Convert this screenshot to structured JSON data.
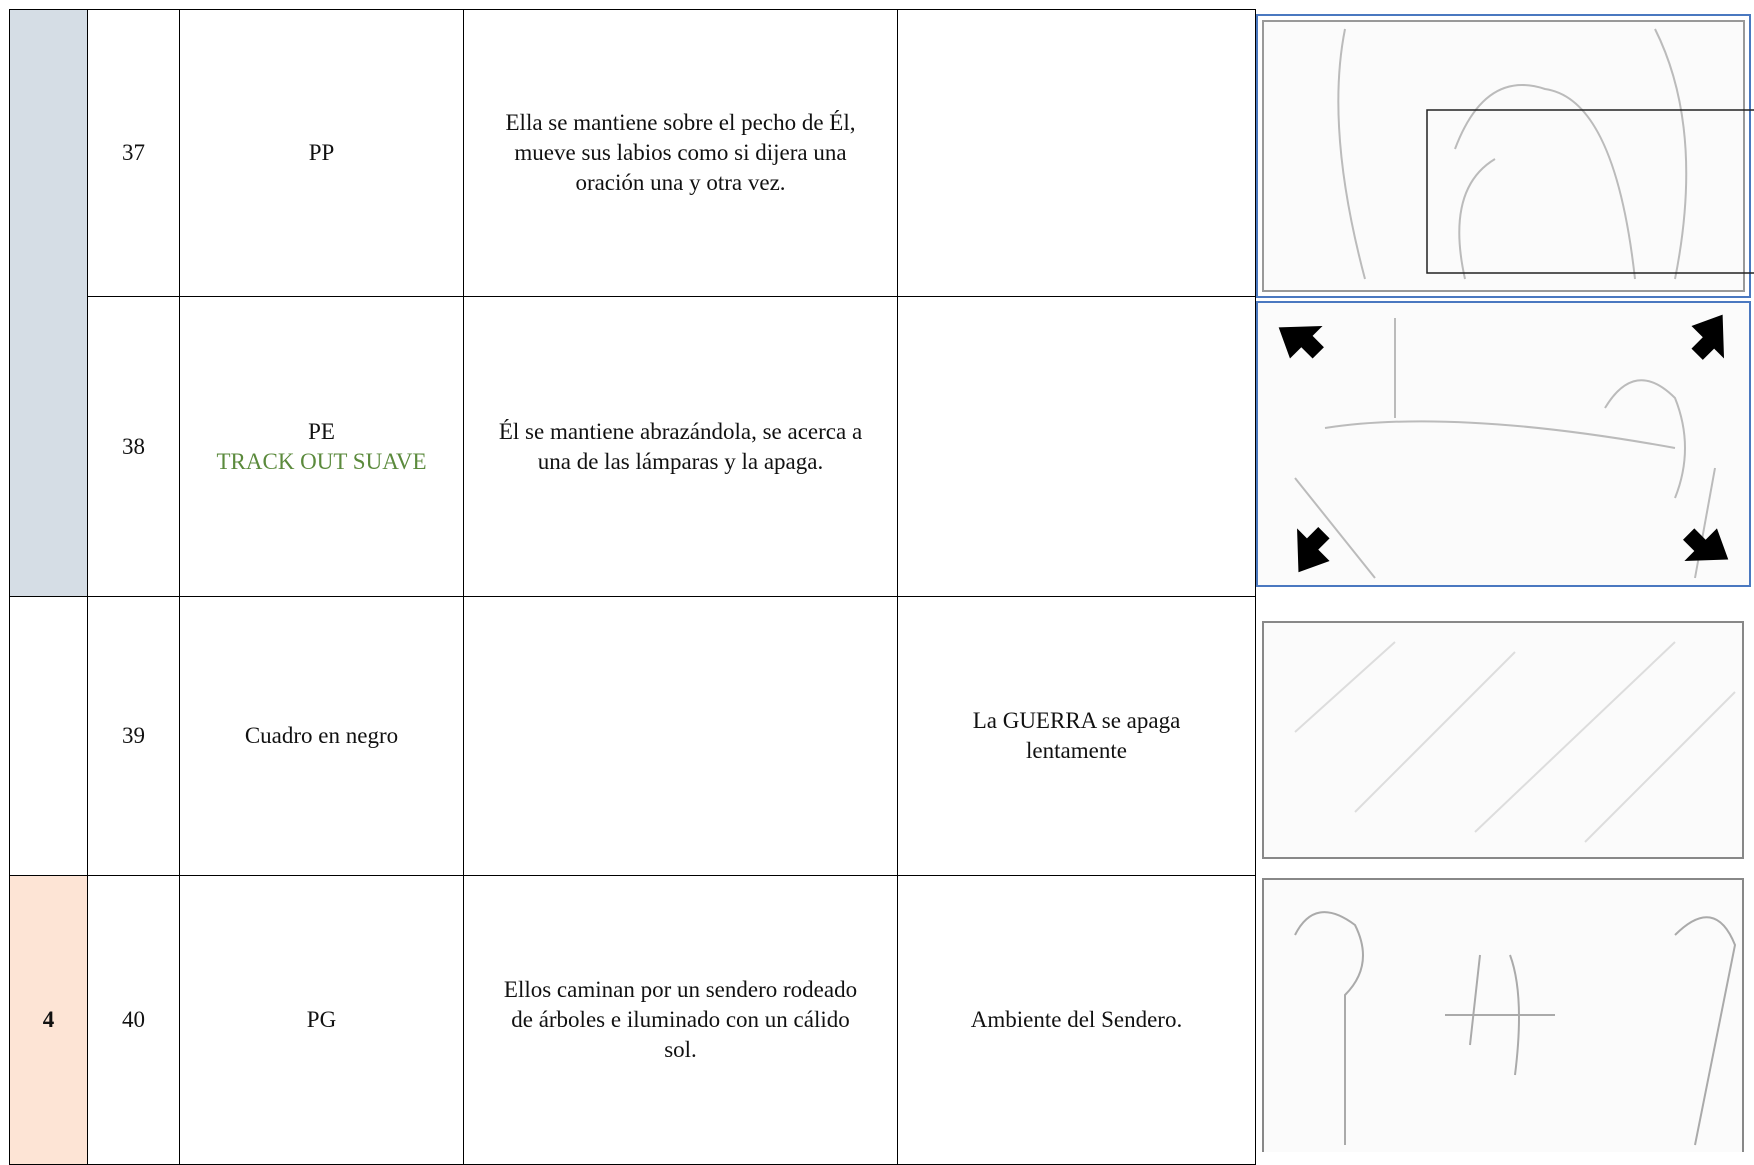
{
  "rows": [
    {
      "shot": "37",
      "plane": "PP",
      "description": "Ella se mantiene sobre el pecho de Él, mueve sus labios como si dijera una oración una y otra vez."
    },
    {
      "shot": "38",
      "plane": "PE",
      "movement": "TRACK OUT SUAVE",
      "description": "Él se mantiene abrazándola, se acerca a una de las lámparas y la apaga."
    },
    {
      "shot": "39",
      "plane": "Cuadro en negro",
      "sound": "La GUERRA se apaga lentamente"
    },
    {
      "scene": "4",
      "shot": "40",
      "plane": "PG",
      "description": "Ellos caminan por un sendero rodeado de árboles e iluminado con un cálido sol.",
      "sound": "Ambiente del Sendero."
    }
  ]
}
